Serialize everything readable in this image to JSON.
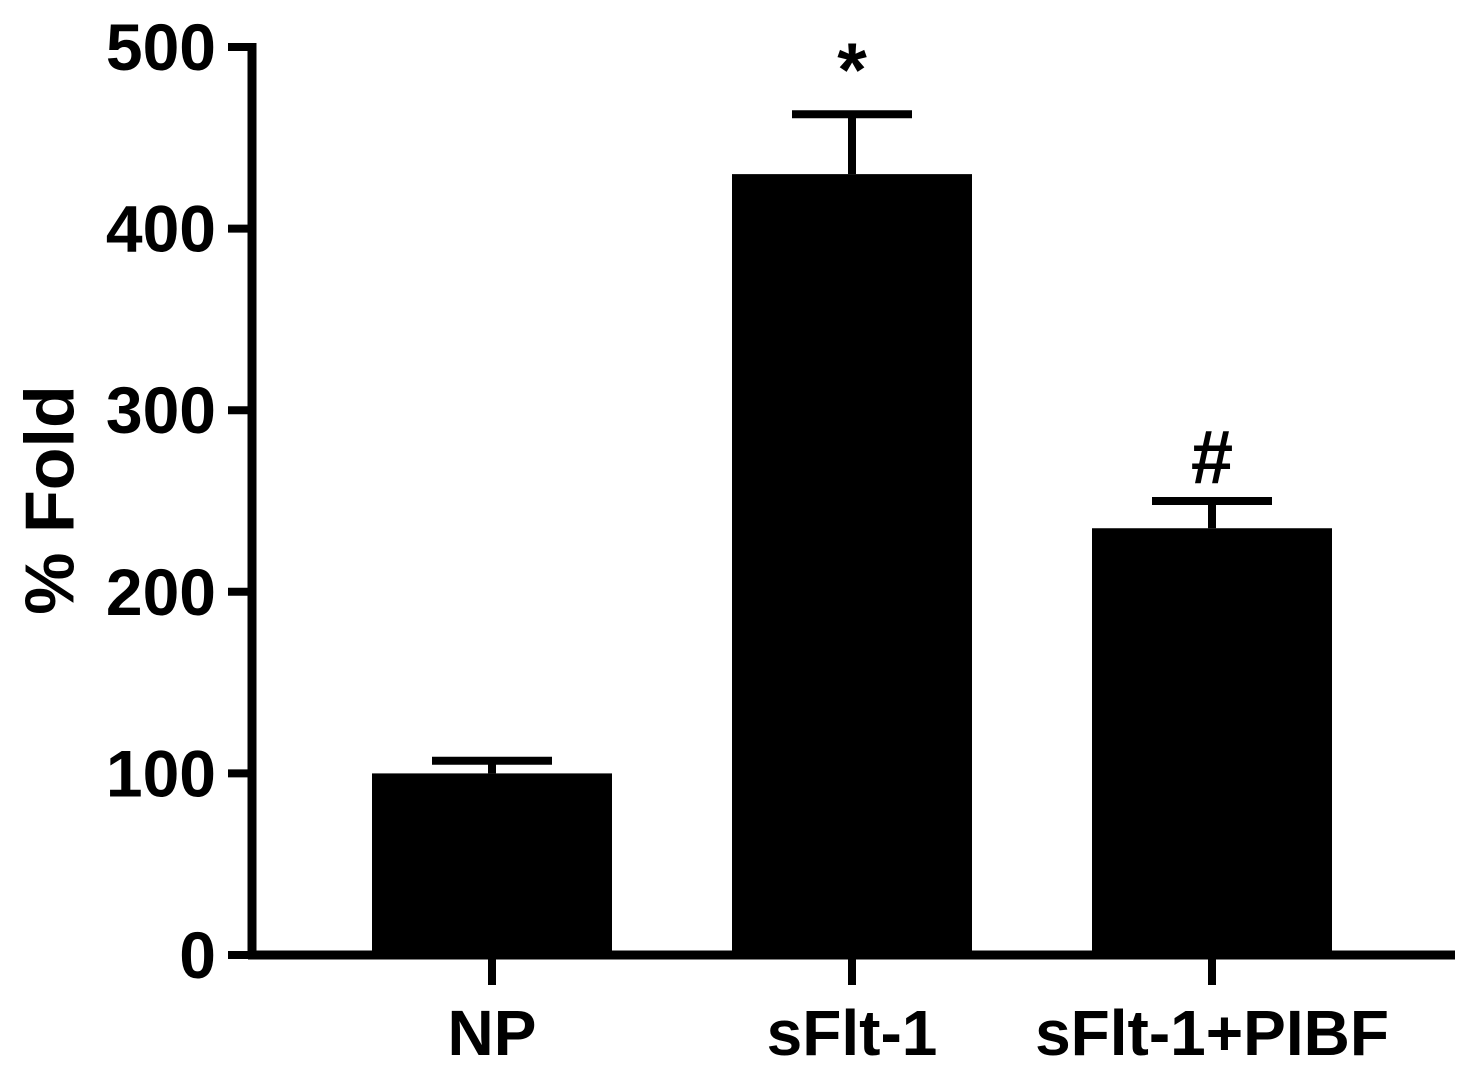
{
  "chart_data": {
    "type": "bar",
    "ylabel": "% Fold",
    "xlabel": "",
    "ylim": [
      0,
      500
    ],
    "yticks": [
      0,
      100,
      200,
      300,
      400,
      500
    ],
    "ytick_labels": [
      "0",
      "100",
      "200",
      "300",
      "400",
      "500"
    ],
    "categories": [
      "NP",
      "sFlt-1",
      "sFlt-1+PIBF"
    ],
    "values": [
      100,
      430,
      235
    ],
    "errors": [
      7,
      33,
      15
    ],
    "annotations": [
      "",
      "*",
      "#"
    ],
    "grid": false,
    "legend": "none",
    "bar_color": "#000000"
  }
}
